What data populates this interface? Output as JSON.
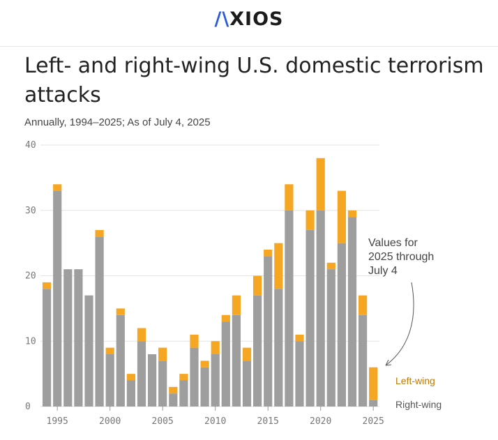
{
  "header": {
    "logo_mark": "/\\",
    "logo_text": "XIOS",
    "logo_alt": "AXIOS"
  },
  "title": "Left- and right-wing U.S. domestic terrorism attacks",
  "subtitle": "Annually, 1994–2025; As of July 4, 2025",
  "colors": {
    "left_wing": "#f5a623",
    "right_wing": "#9e9e9e",
    "grid": "#e3e3e3",
    "text": "#222222"
  },
  "chart_data": {
    "type": "bar",
    "stacked": true,
    "title": "Left- and right-wing U.S. domestic terrorism attacks",
    "subtitle": "Annually, 1994–2025; As of July 4, 2025",
    "xlabel": "",
    "ylabel": "",
    "ylim": [
      0,
      40
    ],
    "yticks": [
      0,
      10,
      20,
      30,
      40
    ],
    "xticks": [
      1995,
      2000,
      2005,
      2010,
      2015,
      2020,
      2025
    ],
    "x": [
      1994,
      1995,
      1996,
      1997,
      1998,
      1999,
      2000,
      2001,
      2002,
      2003,
      2004,
      2005,
      2006,
      2007,
      2008,
      2009,
      2010,
      2011,
      2012,
      2013,
      2014,
      2015,
      2016,
      2017,
      2018,
      2019,
      2020,
      2021,
      2022,
      2023,
      2024,
      2025
    ],
    "series": [
      {
        "name": "Right-wing",
        "color": "#9e9e9e",
        "values": [
          18,
          33,
          21,
          21,
          17,
          26,
          8,
          14,
          4,
          10,
          8,
          7,
          2,
          4,
          9,
          6,
          8,
          13,
          14,
          7,
          17,
          23,
          18,
          30,
          10,
          27,
          30,
          21,
          25,
          29,
          14,
          1
        ]
      },
      {
        "name": "Left-wing",
        "color": "#f5a623",
        "values": [
          1,
          1,
          0,
          0,
          0,
          1,
          1,
          1,
          1,
          2,
          0,
          2,
          1,
          1,
          2,
          1,
          2,
          1,
          3,
          2,
          3,
          1,
          7,
          4,
          1,
          3,
          8,
          1,
          8,
          1,
          3,
          5
        ]
      }
    ],
    "legend": {
      "left_wing": "Left-wing",
      "right_wing": "Right-wing",
      "placement": "right, beside the final bar"
    },
    "annotation": {
      "lines": [
        "Values for",
        "2025 through",
        "July 4"
      ]
    }
  }
}
